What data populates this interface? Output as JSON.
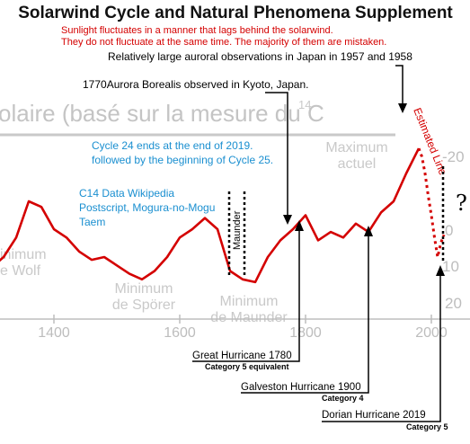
{
  "chart_data": {
    "type": "line",
    "title": "Solarwind Cycle and Natural Phenomena Supplement",
    "subtitle": [
      "Sunlight fluctuates in a manner that lags behind the solarwind.",
      "They do not fluctuate at the same time. The majority of them are mistaken."
    ],
    "background_title": "olaire (basé sur la mesure du  C",
    "background_superscript": "14",
    "xticks": [
      "1400",
      "1600",
      "1800",
      "2000"
    ],
    "yticks_right": [
      "-20",
      "0",
      "10",
      "20"
    ],
    "minima_labels": [
      {
        "lines": [
          "inimum",
          "e Wolf"
        ]
      },
      {
        "lines": [
          "Minimum",
          "de Spörer"
        ]
      },
      {
        "lines": [
          "Minimum",
          "de Maunder"
        ]
      },
      {
        "lines": [
          "Maximum",
          "actuel"
        ]
      }
    ],
    "series": [
      {
        "style": "solid",
        "color": "#d40000",
        "x": [
          1200,
          1220,
          1240,
          1260,
          1280,
          1300,
          1320,
          1340,
          1360,
          1380,
          1400,
          1420,
          1440,
          1460,
          1480,
          1500,
          1520,
          1540,
          1560,
          1580,
          1600,
          1620,
          1640,
          1660,
          1680,
          1700,
          1720,
          1740,
          1760,
          1780,
          1800,
          1820,
          1840,
          1860,
          1880,
          1900,
          1920,
          1940,
          1960,
          1980
        ],
        "y": [
          4,
          0,
          -4,
          8,
          12,
          14,
          10,
          3,
          -10,
          -8,
          0,
          3,
          8,
          11,
          10,
          13,
          16,
          18,
          15,
          10,
          3,
          0,
          -4,
          0,
          15,
          18,
          19,
          10,
          4,
          0,
          -5,
          4,
          1,
          3,
          -2,
          1,
          -6,
          -10,
          -20,
          -29
        ]
      },
      {
        "name": "Estimated Line",
        "style": "dotted",
        "color": "#d40000",
        "x": [
          1980,
          1985,
          1990,
          1995,
          2000,
          2005,
          2010,
          2015,
          2020
        ],
        "y": [
          -29,
          -26,
          -20,
          -12,
          -5,
          3,
          10,
          5,
          2
        ]
      }
    ],
    "annotations": [
      {
        "text": "Relatively large auroral observations in Japan in 1957 and 1958"
      },
      {
        "text": "1770Aurora Borealis observed in Kyoto, Japan."
      },
      {
        "text": "Cycle 24 ends at the end of 2019.",
        "color": "blue"
      },
      {
        "text": "followed by the beginning of Cycle 25.",
        "color": "blue"
      },
      {
        "text": "C14 Data Wikipedia",
        "color": "blue"
      },
      {
        "text": "Postscript, Mogura-no-Mogu",
        "color": "blue"
      },
      {
        "text": "Taem",
        "color": "blue"
      },
      {
        "text": "Maunder"
      },
      {
        "text": "Great Hurricane 1780",
        "note": "Category 5 equivalent"
      },
      {
        "text": "Galveston Hurricane 1900",
        "note": "Category 4"
      },
      {
        "text": "Dorian Hurricane  2019",
        "note": "Category 5"
      },
      {
        "text": "?"
      }
    ]
  }
}
